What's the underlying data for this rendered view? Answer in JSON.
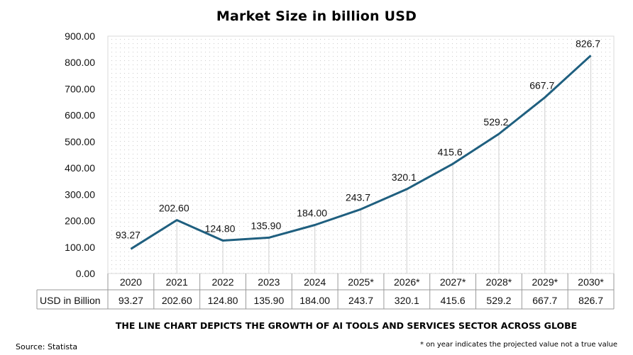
{
  "chart_data": {
    "type": "line",
    "title": "Market Size in billion USD",
    "categories": [
      "2020",
      "2021",
      "2022",
      "2023",
      "2024",
      "2025*",
      "2026*",
      "2027*",
      "2028*",
      "2029*",
      "2030*"
    ],
    "series": [
      {
        "name": "USD in Billion",
        "values": [
          93.27,
          202.6,
          124.8,
          135.9,
          184.0,
          243.7,
          320.1,
          415.6,
          529.2,
          667.7,
          826.7
        ],
        "labels": [
          "93.27",
          "202.60",
          "124.80",
          "135.90",
          "184.00",
          "243.7",
          "320.1",
          "415.6",
          "529.2",
          "667.7",
          "826.7"
        ],
        "color": "#1f5f7f"
      }
    ],
    "ylim": [
      0,
      900
    ],
    "yticks": [
      "0.00",
      "100.00",
      "200.00",
      "300.00",
      "400.00",
      "500.00",
      "600.00",
      "700.00",
      "800.00",
      "900.00"
    ],
    "data_table": true,
    "grid": false,
    "plot_pattern": "dotted",
    "caption": "THE LINE CHART DEPICTS THE GROWTH OF AI TOOLS AND SERVICES SECTOR ACROSS GLOBE",
    "source": "Source: Statista",
    "footnote": "* on year indicates the projected value not a true value"
  }
}
